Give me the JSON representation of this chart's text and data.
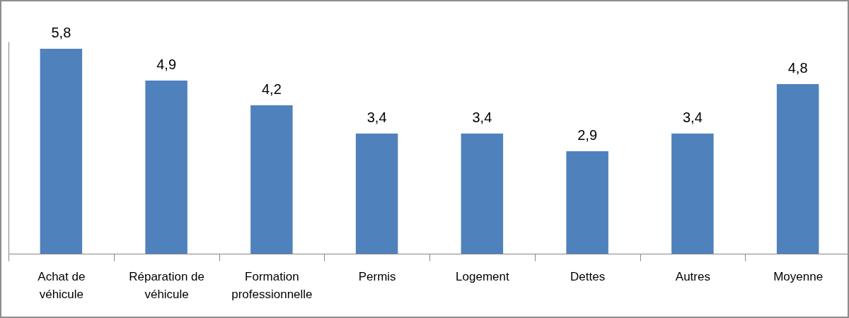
{
  "chart_data": {
    "type": "bar",
    "categories": [
      "Achat de véhicule",
      "Réparation de véhicule",
      "Formation professionnelle",
      "Permis",
      "Logement",
      "Dettes",
      "Autres",
      "Moyenne"
    ],
    "values": [
      5.8,
      4.9,
      4.2,
      3.4,
      3.4,
      2.9,
      3.4,
      4.8
    ],
    "value_labels": [
      "5,8",
      "4,9",
      "4,2",
      "3,4",
      "3,4",
      "2,9",
      "3,4",
      "4,8"
    ],
    "color": "#4f81bd",
    "grid": false
  }
}
